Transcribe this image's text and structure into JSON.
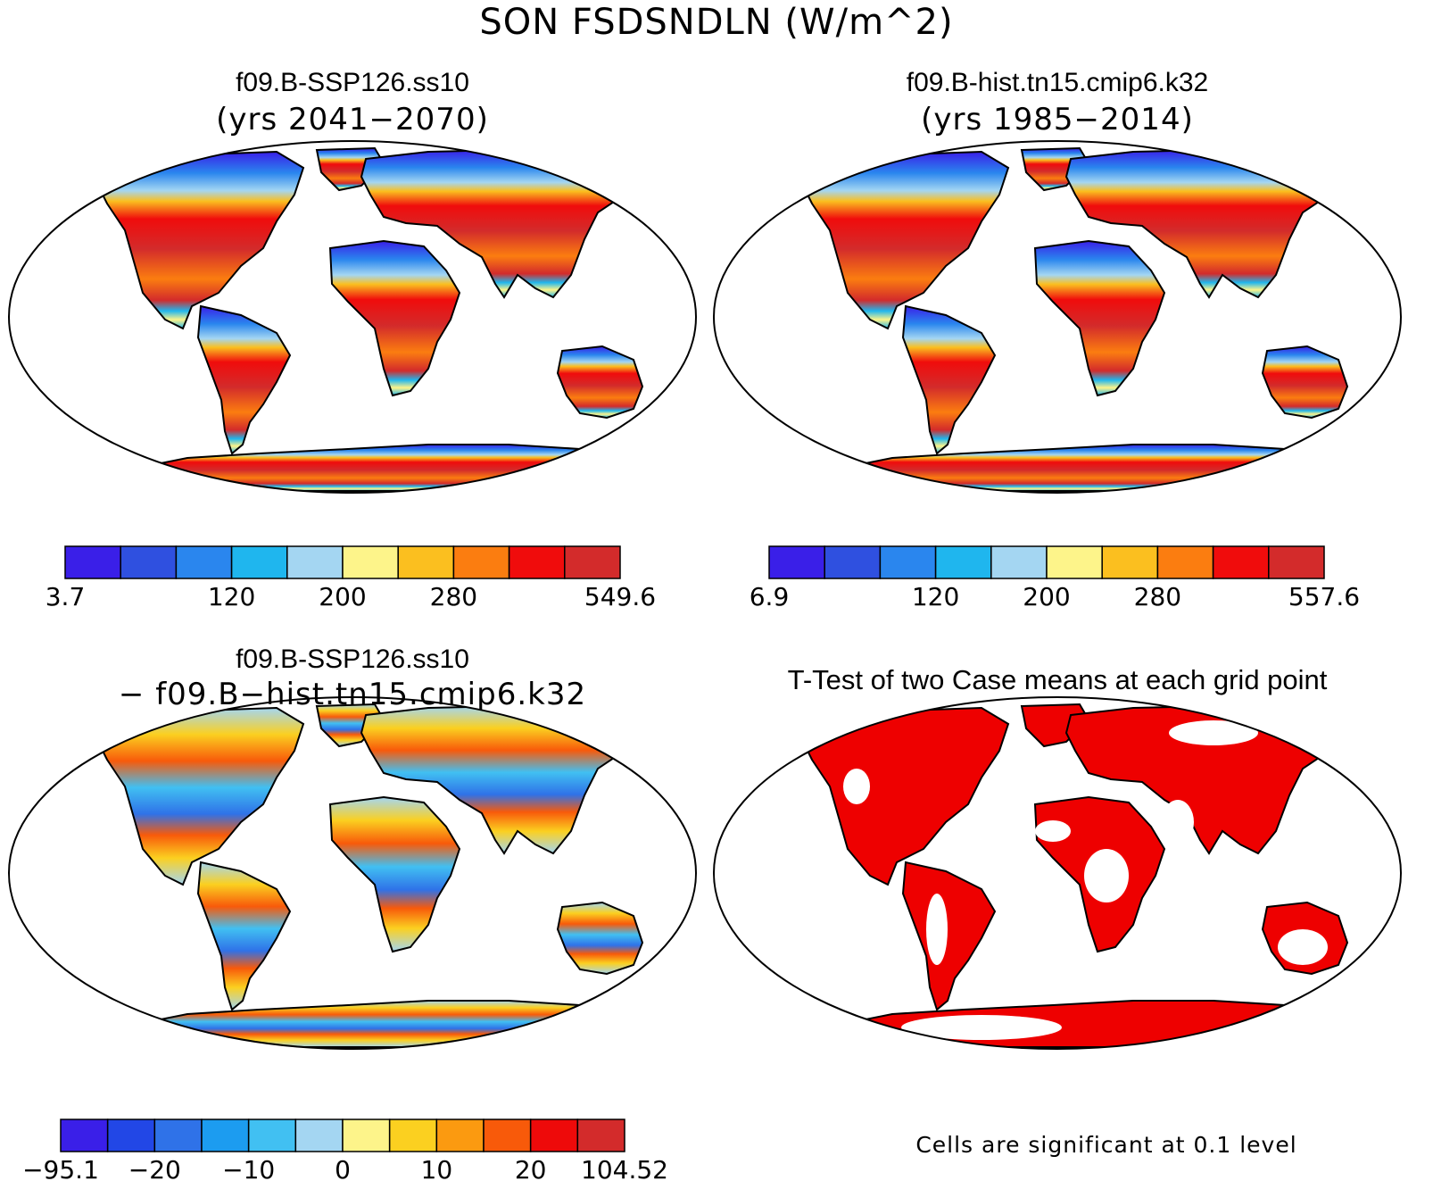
{
  "figure": {
    "title": "SON FSDSNDLN (W/m^2)"
  },
  "panels": [
    {
      "id": "case",
      "title": "f09.B-SSP126.ss10",
      "subtitle": "(yrs 2041−2070)",
      "colorbar": {
        "colors": [
          "#3a1fe8",
          "#2f50e0",
          "#2a86ee",
          "#1fb6ee",
          "#a4d6f2",
          "#fdf48a",
          "#fbbf1f",
          "#fb7d10",
          "#f00c0c",
          "#d32b2b"
        ],
        "tick_labels": [
          "3.7",
          "120",
          "200",
          "280",
          "549.6"
        ],
        "tick_boundary_index": [
          0,
          3,
          5,
          7,
          10
        ]
      }
    },
    {
      "id": "control",
      "title": "f09.B-hist.tn15.cmip6.k32",
      "subtitle": "(yrs 1985−2014)",
      "colorbar": {
        "colors": [
          "#3a1fe8",
          "#2f50e0",
          "#2a86ee",
          "#1fb6ee",
          "#a4d6f2",
          "#fdf48a",
          "#fbbf1f",
          "#fb7d10",
          "#f00c0c",
          "#d32b2b"
        ],
        "tick_labels": [
          "6.9",
          "120",
          "200",
          "280",
          "557.6"
        ],
        "tick_boundary_index": [
          0,
          3,
          5,
          7,
          10
        ]
      }
    },
    {
      "id": "difference",
      "title": "f09.B-SSP126.ss10",
      "subtitle": "− f09.B−hist.tn15.cmip6.k32",
      "colorbar": {
        "colors": [
          "#3a1fe8",
          "#2247e6",
          "#2f72e8",
          "#1c9cf0",
          "#41c0f2",
          "#a4d6f2",
          "#fdf48a",
          "#fbd020",
          "#fb9a10",
          "#f85a0a",
          "#ee0a0a",
          "#d32b2b"
        ],
        "tick_labels": [
          "−95.1",
          "−20",
          "−10",
          "0",
          "10",
          "20",
          "104.52"
        ],
        "tick_boundary_index": [
          0,
          2,
          4,
          6,
          8,
          10,
          12
        ]
      }
    },
    {
      "id": "ttest",
      "title": "T-Test of two Case means at each grid point",
      "note": "Cells are significant at 0.1 level",
      "significant_color": "#ee0000"
    }
  ]
}
